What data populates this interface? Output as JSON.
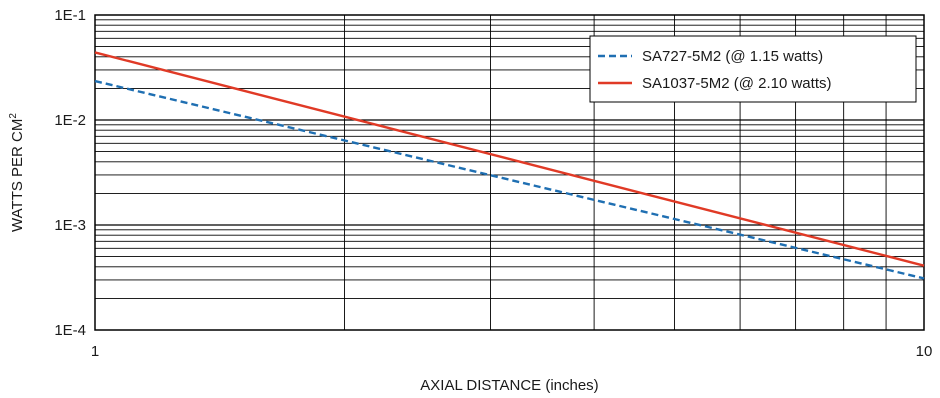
{
  "chart_data": {
    "type": "line",
    "x_scale": "log",
    "y_scale": "log",
    "xlim": [
      1,
      10
    ],
    "ylim": [
      0.0001,
      0.1
    ],
    "grid": true,
    "legend_position": "top-right",
    "xlabel": "AXIAL DISTANCE (inches)",
    "ylabel": "WATTS PER CM",
    "ylabel_superscript": "2",
    "x_ticks": [
      {
        "value": 1,
        "label": "1"
      },
      {
        "value": 10,
        "label": "10"
      }
    ],
    "y_ticks": [
      {
        "value": 0.0001,
        "label": "1E-4"
      },
      {
        "value": 0.001,
        "label": "1E-3"
      },
      {
        "value": 0.01,
        "label": "1E-2"
      },
      {
        "value": 0.1,
        "label": "1E-1"
      }
    ],
    "series": [
      {
        "name": "SA727-5M2 (@ 1.15 watts)",
        "color": "#1f6fb2",
        "style": "dashed",
        "x": [
          1,
          10
        ],
        "y": [
          0.0235,
          0.00031
        ]
      },
      {
        "name": "SA1037-5M2 (@ 2.10 watts)",
        "color": "#e03a26",
        "style": "solid",
        "x": [
          1,
          10
        ],
        "y": [
          0.044,
          0.00041
        ]
      }
    ]
  }
}
